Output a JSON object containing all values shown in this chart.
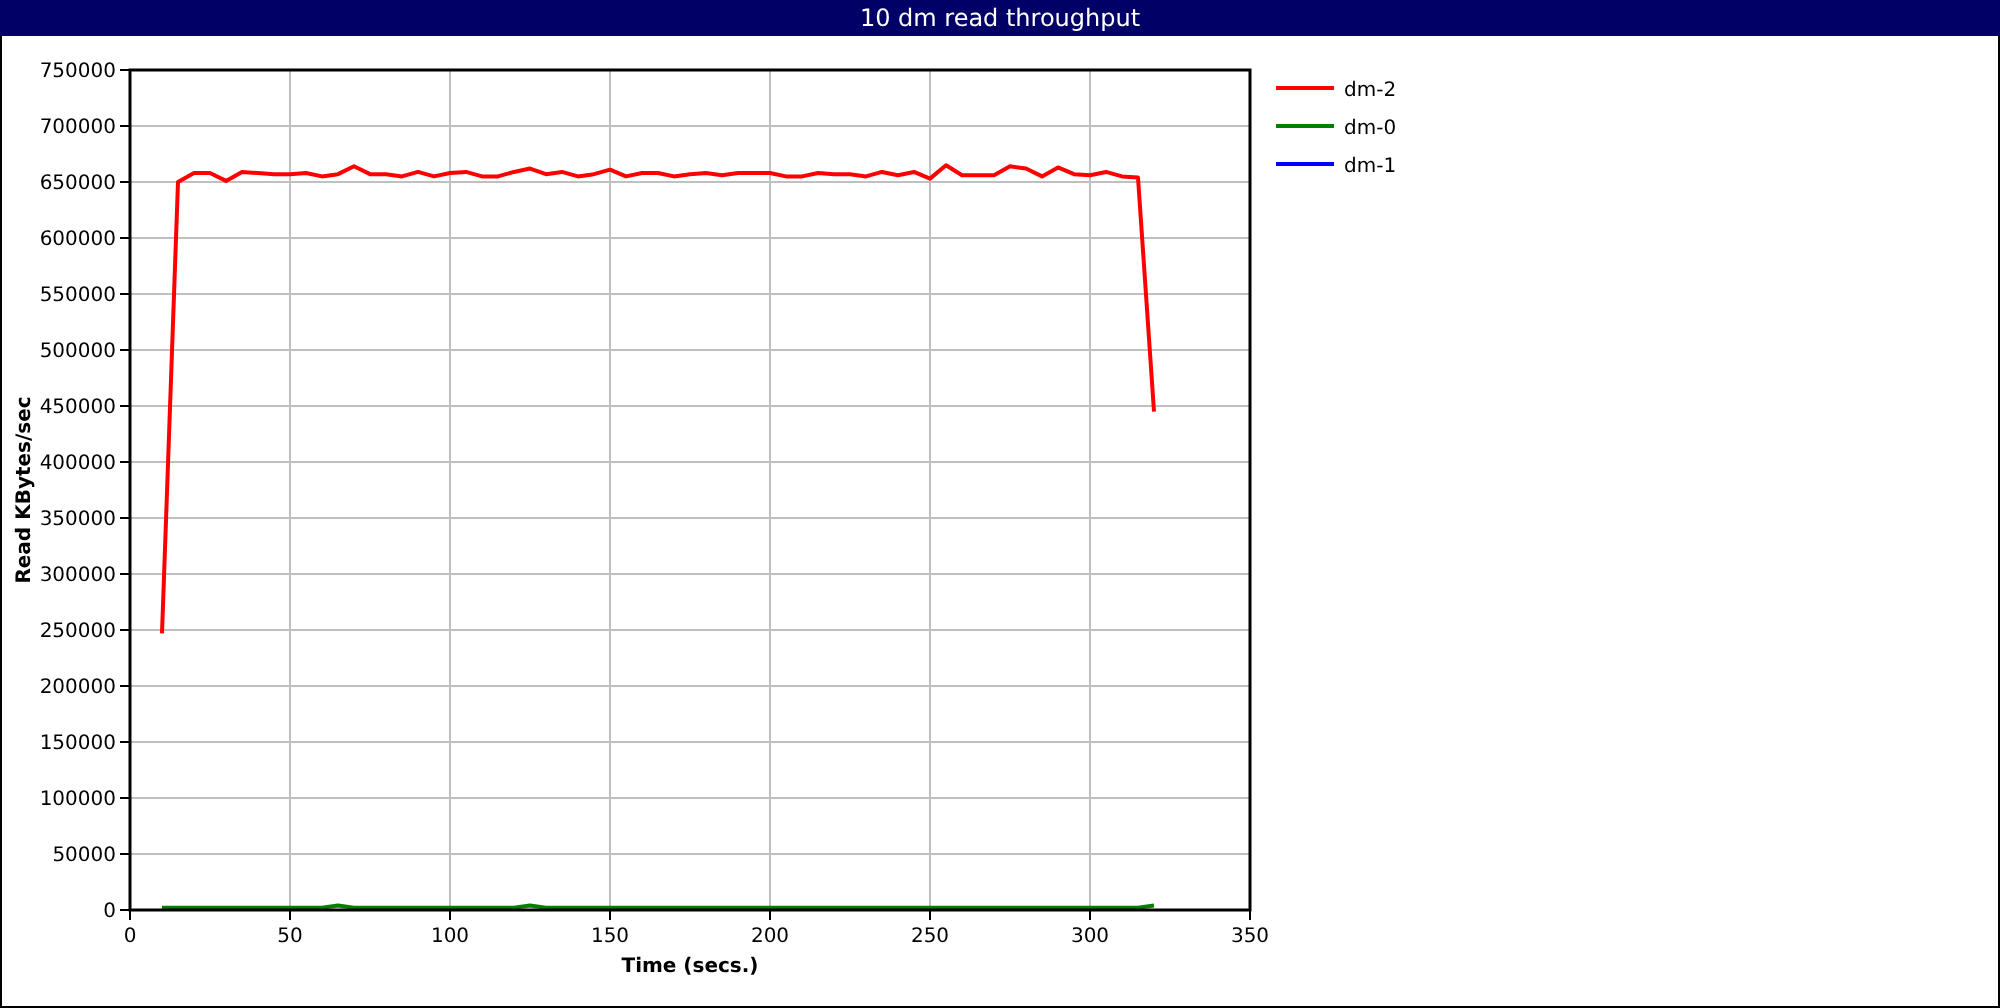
{
  "chart_data": {
    "type": "line",
    "title": "10 dm read throughput",
    "xlabel": "Time (secs.)",
    "ylabel": "Read KBytes/sec",
    "x": [
      10,
      15,
      20,
      25,
      30,
      35,
      40,
      45,
      50,
      55,
      60,
      65,
      70,
      75,
      80,
      85,
      90,
      95,
      100,
      105,
      110,
      115,
      120,
      125,
      130,
      135,
      140,
      145,
      150,
      155,
      160,
      165,
      170,
      175,
      180,
      185,
      190,
      195,
      200,
      205,
      210,
      215,
      220,
      225,
      230,
      235,
      240,
      245,
      250,
      255,
      260,
      265,
      270,
      275,
      280,
      285,
      290,
      295,
      300,
      305,
      310,
      315,
      320
    ],
    "series": [
      {
        "name": "dm-2",
        "color": "#ff0000",
        "values": [
          247000,
          650000,
          658000,
          658000,
          651000,
          659000,
          658000,
          657000,
          657000,
          658000,
          655000,
          657000,
          664000,
          657000,
          657000,
          655000,
          659000,
          655000,
          658000,
          659000,
          655000,
          655000,
          659000,
          662000,
          657000,
          659000,
          655000,
          657000,
          661000,
          655000,
          658000,
          658000,
          655000,
          657000,
          658000,
          656000,
          658000,
          658000,
          658000,
          655000,
          655000,
          658000,
          657000,
          657000,
          655000,
          659000,
          656000,
          659000,
          653000,
          665000,
          656000,
          656000,
          656000,
          664000,
          662000,
          655000,
          663000,
          657000,
          656000,
          659000,
          655000,
          654000,
          445000
        ]
      },
      {
        "name": "dm-0",
        "color": "#008000",
        "values": [
          2000,
          2000,
          2000,
          2000,
          2000,
          2000,
          2000,
          2000,
          2000,
          2000,
          2000,
          4000,
          2000,
          2000,
          2000,
          2000,
          2000,
          2000,
          2000,
          2000,
          2000,
          2000,
          2000,
          4000,
          2000,
          2000,
          2000,
          2000,
          2000,
          2000,
          2000,
          2000,
          2000,
          2000,
          2000,
          2000,
          2000,
          2000,
          2000,
          2000,
          2000,
          2000,
          2000,
          2000,
          2000,
          2000,
          2000,
          2000,
          2000,
          2000,
          2000,
          2000,
          2000,
          2000,
          2000,
          2000,
          2000,
          2000,
          2000,
          2000,
          2000,
          2000,
          4000
        ]
      },
      {
        "name": "dm-1",
        "color": "#0000ff",
        "values": [
          null,
          null,
          null,
          null,
          null,
          null,
          null,
          null,
          null,
          null,
          null,
          null,
          null,
          null,
          null,
          null,
          null,
          null,
          null,
          null,
          null,
          null,
          null,
          null,
          null,
          null,
          null,
          null,
          null,
          null,
          null,
          null,
          null,
          null,
          null,
          null,
          null,
          null,
          null,
          null,
          null,
          null,
          null,
          null,
          null,
          null,
          null,
          null,
          null,
          null,
          null,
          null,
          null,
          null,
          null,
          null,
          null,
          null,
          null,
          null,
          null,
          null,
          null
        ]
      }
    ],
    "xlim": [
      0,
      350
    ],
    "xticks": [
      0,
      50,
      100,
      150,
      200,
      250,
      300,
      350
    ],
    "ylim": [
      0,
      750000
    ],
    "yticks": [
      0,
      50000,
      100000,
      150000,
      200000,
      250000,
      300000,
      350000,
      400000,
      450000,
      500000,
      550000,
      600000,
      650000,
      700000,
      750000
    ],
    "grid": true,
    "legend": "right",
    "line_style": "solid",
    "marker": "none"
  }
}
